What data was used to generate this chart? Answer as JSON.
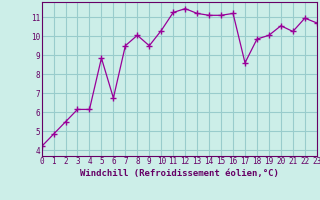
{
  "x": [
    0,
    1,
    2,
    3,
    4,
    5,
    6,
    7,
    8,
    9,
    10,
    11,
    12,
    13,
    14,
    15,
    16,
    17,
    18,
    19,
    20,
    21,
    22,
    23
  ],
  "y": [
    4.2,
    4.85,
    5.5,
    6.15,
    6.15,
    8.85,
    6.75,
    9.5,
    10.05,
    9.5,
    10.3,
    11.25,
    11.45,
    11.2,
    11.1,
    11.1,
    11.2,
    8.6,
    9.85,
    10.05,
    10.55,
    10.25,
    10.95,
    10.7
  ],
  "line_color": "#990099",
  "marker": "+",
  "marker_size": 4,
  "bg_color": "#cceee8",
  "grid_color": "#99cccc",
  "xlim": [
    0,
    23
  ],
  "ylim": [
    3.7,
    11.8
  ],
  "xlabel": "Windchill (Refroidissement éolien,°C)",
  "yticks": [
    4,
    5,
    6,
    7,
    8,
    9,
    10,
    11
  ],
  "xticks": [
    0,
    1,
    2,
    3,
    4,
    5,
    6,
    7,
    8,
    9,
    10,
    11,
    12,
    13,
    14,
    15,
    16,
    17,
    18,
    19,
    20,
    21,
    22,
    23
  ],
  "tick_color": "#660066",
  "label_fontsize": 5.5,
  "axis_label_fontsize": 6.5,
  "linewidth": 0.9
}
